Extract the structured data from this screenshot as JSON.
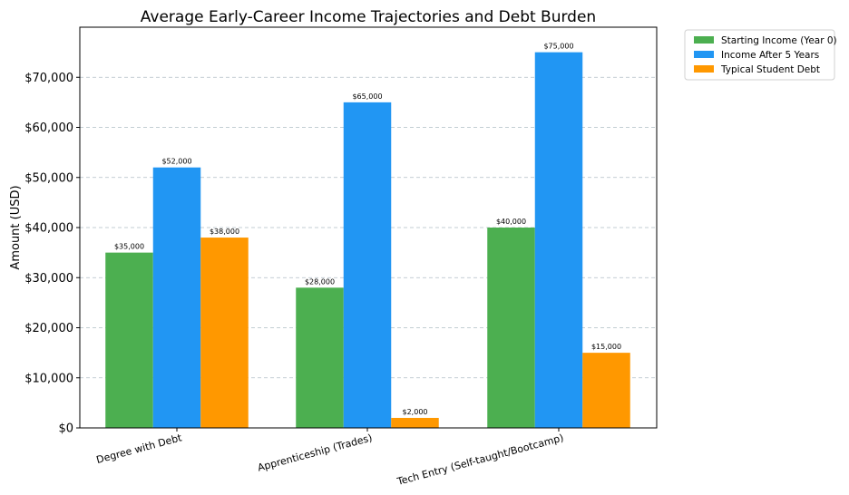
{
  "chart_data": {
    "type": "bar",
    "title": "Average Early-Career Income Trajectories and Debt Burden",
    "xlabel": "",
    "ylabel": "Amount (USD)",
    "ylim": [
      0,
      80000
    ],
    "yticks": [
      0,
      10000,
      20000,
      30000,
      40000,
      50000,
      60000,
      70000
    ],
    "ytick_labels": [
      "$0",
      "$10,000",
      "$20,000",
      "$30,000",
      "$40,000",
      "$50,000",
      "$60,000",
      "$70,000"
    ],
    "categories": [
      "Degree with Debt",
      "Apprenticeship (Trades)",
      "Tech Entry (Self-taught/Bootcamp)"
    ],
    "series": [
      {
        "name": "Starting Income (Year 0)",
        "color": "#4caf50",
        "values": [
          35000,
          28000,
          40000
        ],
        "labels": [
          "$35,000",
          "$28,000",
          "$40,000"
        ]
      },
      {
        "name": "Income After 5 Years",
        "color": "#2196f3",
        "values": [
          52000,
          65000,
          75000
        ],
        "labels": [
          "$52,000",
          "$65,000",
          "$75,000"
        ]
      },
      {
        "name": "Typical Student Debt",
        "color": "#ff9800",
        "values": [
          38000,
          2000,
          15000
        ],
        "labels": [
          "$38,000",
          "$2,000",
          "$15,000"
        ]
      }
    ],
    "grid": "y-dashed",
    "legend_position": "outside-top-right"
  }
}
